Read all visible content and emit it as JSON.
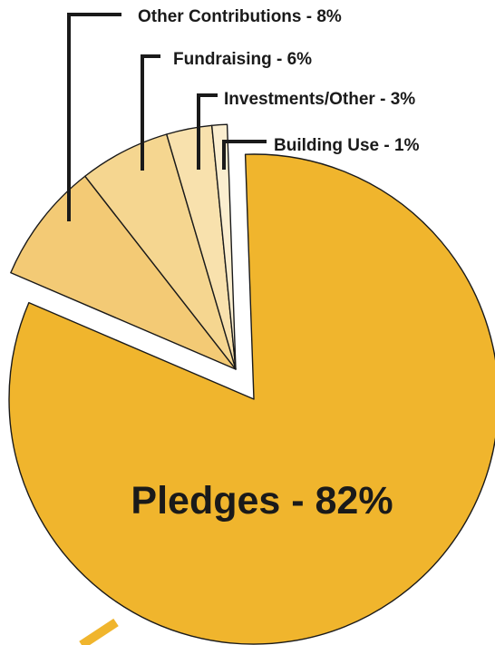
{
  "chart_data": {
    "type": "pie",
    "categories": [
      "Pledges",
      "Other Contributions",
      "Fundraising",
      "Investments/Other",
      "Building Use"
    ],
    "values": [
      82,
      8,
      6,
      3,
      1
    ],
    "unit": "%",
    "labels": [
      "Pledges - 82%",
      "Other Contributions - 8%",
      "Fundraising - 6%",
      "Investments/Other - 3%",
      "Building Use - 1%"
    ],
    "colors": [
      "#F0B52D",
      "#F3CA75",
      "#F5D690",
      "#F8E1AD",
      "#FBEECF"
    ],
    "exploded": [
      "Other Contributions",
      "Fundraising",
      "Investments/Other",
      "Building Use"
    ],
    "title": "",
    "legend": "callouts"
  }
}
